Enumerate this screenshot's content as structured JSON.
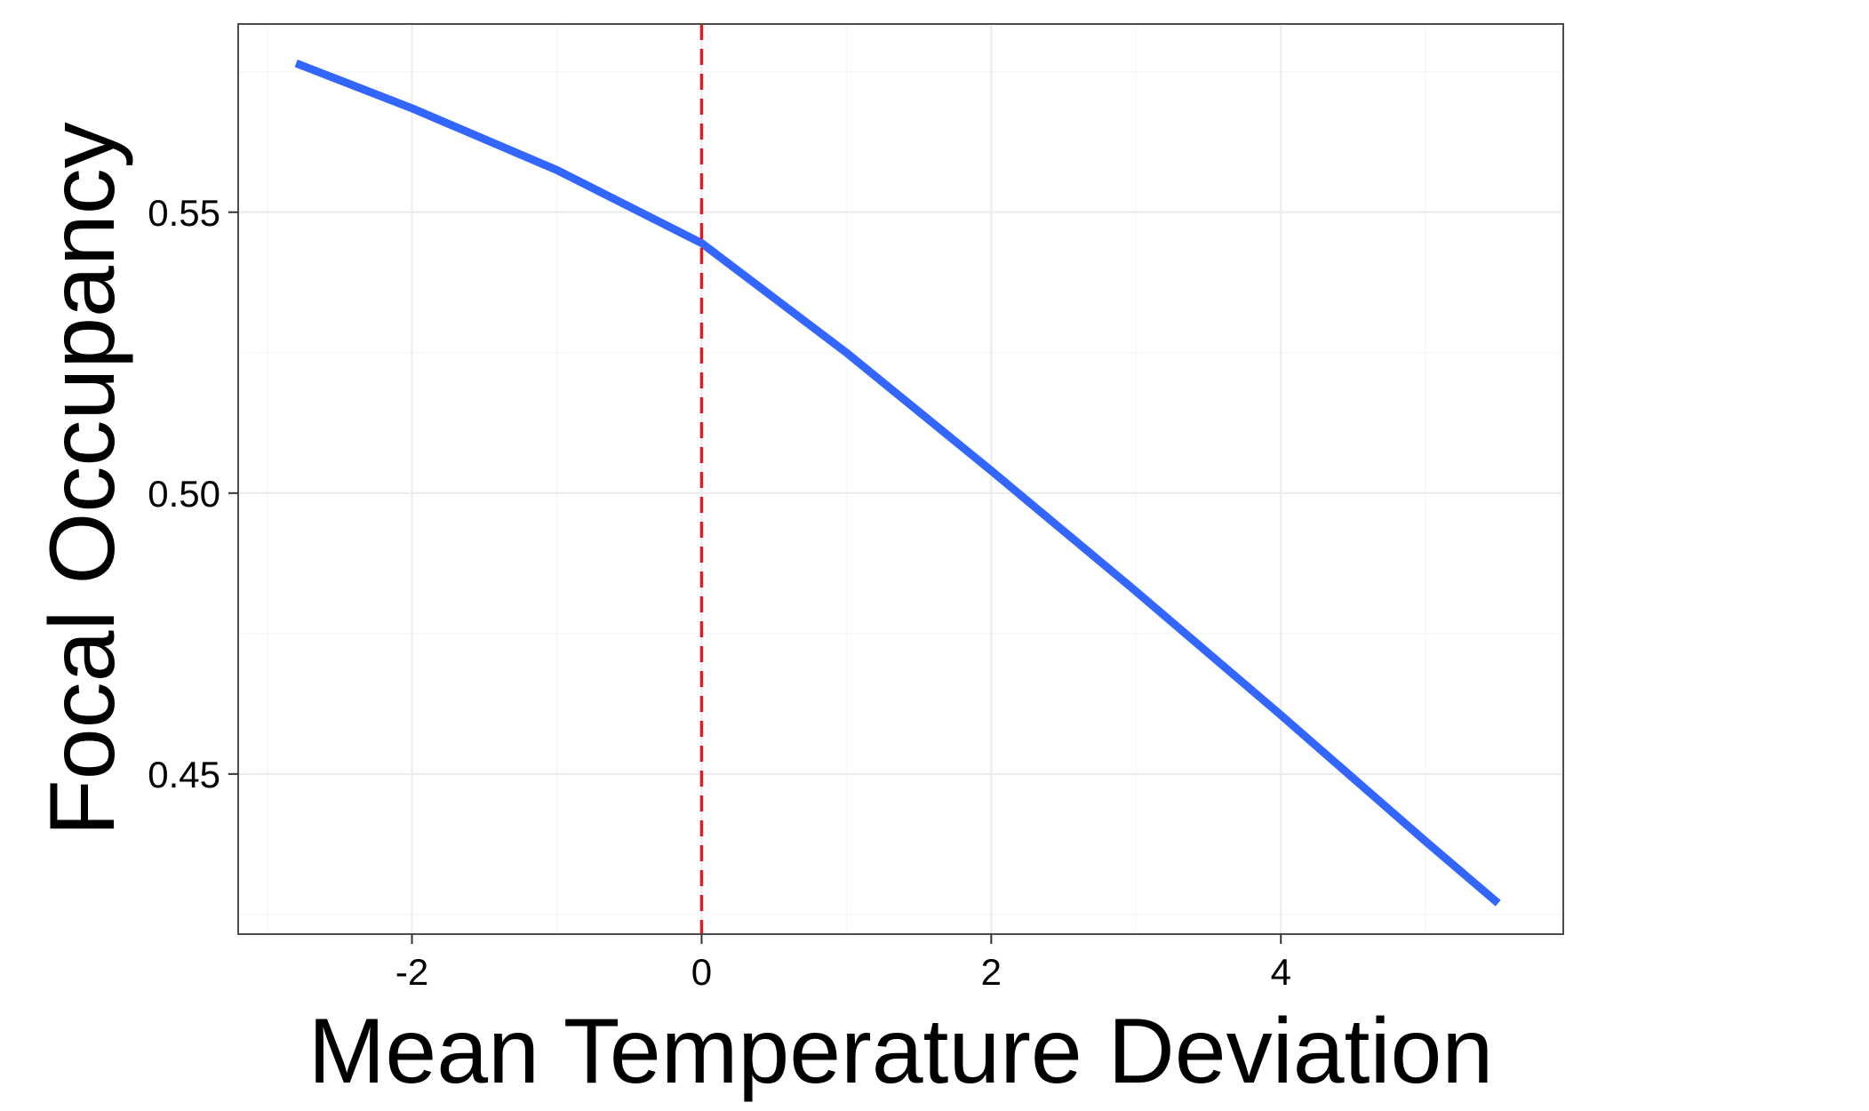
{
  "chart_data": {
    "type": "line",
    "title": "",
    "xlabel": "Mean Temperature Deviation",
    "ylabel": "Focal Occupancy",
    "xlim": [
      -3.2,
      5.95
    ],
    "ylim": [
      0.4215,
      0.5835
    ],
    "x_ticks": [
      {
        "value": -2,
        "label": "-2"
      },
      {
        "value": 0,
        "label": "0"
      },
      {
        "value": 2,
        "label": "2"
      },
      {
        "value": 4,
        "label": "4"
      }
    ],
    "y_ticks": [
      {
        "value": 0.45,
        "label": "0.45"
      },
      {
        "value": 0.5,
        "label": "0.50"
      },
      {
        "value": 0.55,
        "label": "0.55"
      }
    ],
    "grid": true,
    "legend": "none",
    "series": [
      {
        "color": "#3366ff",
        "x": [
          -2.8,
          -2.0,
          -1.0,
          0.0,
          1.0,
          2.0,
          3.0,
          4.0,
          5.0,
          5.5
        ],
        "y": [
          0.5765,
          0.5685,
          0.5575,
          0.5445,
          0.525,
          0.504,
          0.4825,
          0.4605,
          0.438,
          0.427
        ]
      }
    ],
    "reference_lines": [
      {
        "orientation": "vertical",
        "x": 0,
        "color": "#e41a1c",
        "style": "dashed"
      }
    ],
    "colors": {
      "panel_border": "#4d4d4d",
      "grid_major": "#ebebeb",
      "grid_minor": "#f5f5f5"
    }
  }
}
